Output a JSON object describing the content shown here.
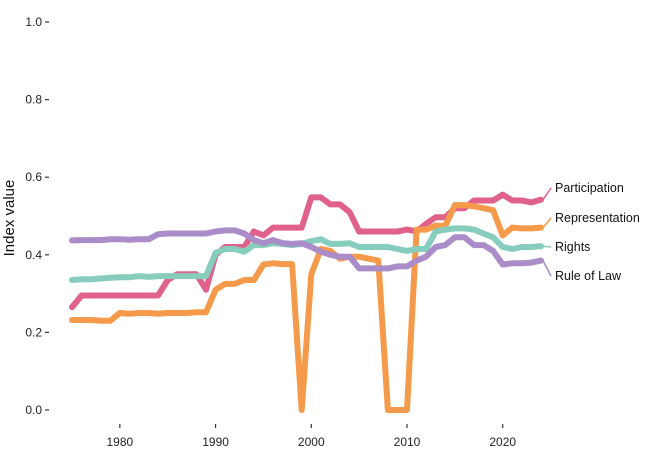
{
  "chart_data": {
    "type": "line",
    "title": "",
    "xlabel": "",
    "ylabel": "Index value",
    "xlim": [
      1975,
      2024
    ],
    "ylim": [
      0,
      1.0
    ],
    "x_ticks": [
      1980,
      1990,
      2000,
      2010,
      2020
    ],
    "y_ticks": [
      "0.0",
      "0.2",
      "0.4",
      "0.6",
      "0.8",
      "1.0"
    ],
    "grid": false,
    "legend": "direct labels at line ends (right)",
    "x": [
      1975,
      1976,
      1977,
      1978,
      1979,
      1980,
      1981,
      1982,
      1983,
      1984,
      1985,
      1986,
      1987,
      1988,
      1989,
      1990,
      1991,
      1992,
      1993,
      1994,
      1995,
      1996,
      1997,
      1998,
      1999,
      2000,
      2001,
      2002,
      2003,
      2004,
      2005,
      2006,
      2007,
      2008,
      2009,
      2010,
      2011,
      2012,
      2013,
      2014,
      2015,
      2016,
      2017,
      2018,
      2019,
      2020,
      2021,
      2022,
      2023,
      2024
    ],
    "series": [
      {
        "name": "Participation",
        "color": "#e0628a",
        "values": [
          0.265,
          0.295,
          0.295,
          0.295,
          0.295,
          0.295,
          0.295,
          0.295,
          0.295,
          0.295,
          0.335,
          0.35,
          0.35,
          0.35,
          0.31,
          0.4,
          0.42,
          0.42,
          0.42,
          0.46,
          0.45,
          0.47,
          0.47,
          0.47,
          0.47,
          0.548,
          0.548,
          0.53,
          0.53,
          0.51,
          0.46,
          0.46,
          0.46,
          0.46,
          0.46,
          0.465,
          0.46,
          0.48,
          0.497,
          0.497,
          0.52,
          0.52,
          0.54,
          0.54,
          0.54,
          0.555,
          0.54,
          0.54,
          0.535,
          0.542
        ]
      },
      {
        "name": "Representation",
        "color": "#f59a4a",
        "values": [
          0.232,
          0.232,
          0.232,
          0.23,
          0.23,
          0.25,
          0.248,
          0.25,
          0.25,
          0.248,
          0.25,
          0.25,
          0.25,
          0.252,
          0.252,
          0.31,
          0.325,
          0.325,
          0.335,
          0.335,
          0.375,
          0.378,
          0.376,
          0.376,
          0.0,
          0.35,
          0.415,
          0.41,
          0.39,
          0.395,
          0.395,
          0.39,
          0.385,
          0.0,
          0.0,
          0.0,
          0.465,
          0.465,
          0.475,
          0.475,
          0.528,
          0.528,
          0.525,
          0.52,
          0.515,
          0.45,
          0.47,
          0.468,
          0.468,
          0.47
        ]
      },
      {
        "name": "Rights",
        "color": "#86cdbd",
        "values": [
          0.335,
          0.337,
          0.337,
          0.339,
          0.341,
          0.342,
          0.342,
          0.345,
          0.343,
          0.345,
          0.345,
          0.345,
          0.345,
          0.345,
          0.345,
          0.405,
          0.415,
          0.415,
          0.408,
          0.425,
          0.425,
          0.43,
          0.428,
          0.425,
          0.428,
          0.435,
          0.44,
          0.428,
          0.428,
          0.43,
          0.42,
          0.42,
          0.42,
          0.42,
          0.415,
          0.41,
          0.415,
          0.415,
          0.46,
          0.465,
          0.468,
          0.468,
          0.465,
          0.455,
          0.445,
          0.42,
          0.415,
          0.42,
          0.42,
          0.422
        ]
      },
      {
        "name": "Rule of Law",
        "color": "#a98cc8",
        "values": [
          0.437,
          0.438,
          0.438,
          0.438,
          0.44,
          0.44,
          0.439,
          0.44,
          0.44,
          0.453,
          0.455,
          0.455,
          0.455,
          0.455,
          0.455,
          0.46,
          0.463,
          0.463,
          0.455,
          0.438,
          0.43,
          0.438,
          0.43,
          0.428,
          0.43,
          0.42,
          0.408,
          0.4,
          0.395,
          0.395,
          0.365,
          0.365,
          0.365,
          0.365,
          0.37,
          0.37,
          0.385,
          0.395,
          0.42,
          0.425,
          0.445,
          0.445,
          0.425,
          0.425,
          0.41,
          0.375,
          0.378,
          0.378,
          0.38,
          0.385
        ]
      }
    ]
  }
}
